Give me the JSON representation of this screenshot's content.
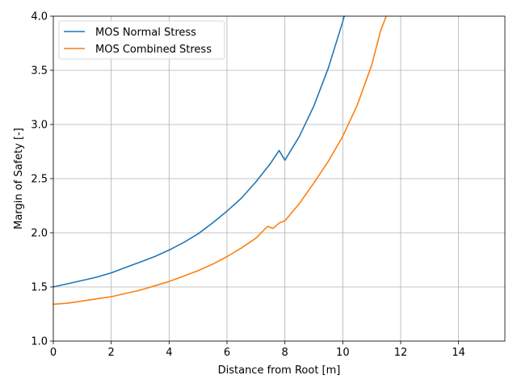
{
  "chart_data": {
    "type": "line",
    "title": "",
    "xlabel": "Distance from Root [m]",
    "ylabel": "Margin of Safety [-]",
    "xlim": [
      0,
      15.6
    ],
    "ylim": [
      1.0,
      4.0
    ],
    "xticks": [
      0,
      2,
      4,
      6,
      8,
      10,
      12,
      14
    ],
    "xtick_labels": [
      "0",
      "2",
      "4",
      "6",
      "8",
      "10",
      "12",
      "14"
    ],
    "yticks": [
      1.0,
      1.5,
      2.0,
      2.5,
      3.0,
      3.5,
      4.0
    ],
    "ytick_labels": [
      "1.0",
      "1.5",
      "2.0",
      "2.5",
      "3.0",
      "3.5",
      "4.0"
    ],
    "grid": true,
    "legend_position": "top-left",
    "series": [
      {
        "name": "MOS Normal Stress",
        "color": "#1f77b4",
        "x": [
          0,
          0.5,
          1,
          1.5,
          2,
          2.5,
          3,
          3.5,
          4,
          4.5,
          5,
          5.5,
          6,
          6.5,
          7,
          7.5,
          7.8,
          8.0,
          8.5,
          9,
          9.5,
          10,
          10.05
        ],
        "y": [
          1.5,
          1.53,
          1.56,
          1.59,
          1.63,
          1.68,
          1.73,
          1.78,
          1.84,
          1.91,
          1.99,
          2.09,
          2.2,
          2.32,
          2.47,
          2.64,
          2.76,
          2.67,
          2.89,
          3.17,
          3.52,
          3.95,
          4.0
        ]
      },
      {
        "name": "MOS Combined Stress",
        "color": "#ff7f0e",
        "x": [
          0,
          0.5,
          1,
          1.5,
          2,
          2.5,
          3,
          3.5,
          4,
          4.5,
          5,
          5.5,
          6,
          6.5,
          7,
          7.4,
          7.6,
          7.8,
          8.0,
          8.5,
          9,
          9.5,
          10,
          10.5,
          11,
          11.3,
          11.5
        ],
        "y": [
          1.34,
          1.35,
          1.37,
          1.39,
          1.41,
          1.44,
          1.47,
          1.51,
          1.55,
          1.6,
          1.65,
          1.71,
          1.78,
          1.86,
          1.95,
          2.06,
          2.04,
          2.09,
          2.11,
          2.27,
          2.46,
          2.66,
          2.89,
          3.18,
          3.55,
          3.86,
          4.0
        ]
      }
    ]
  }
}
